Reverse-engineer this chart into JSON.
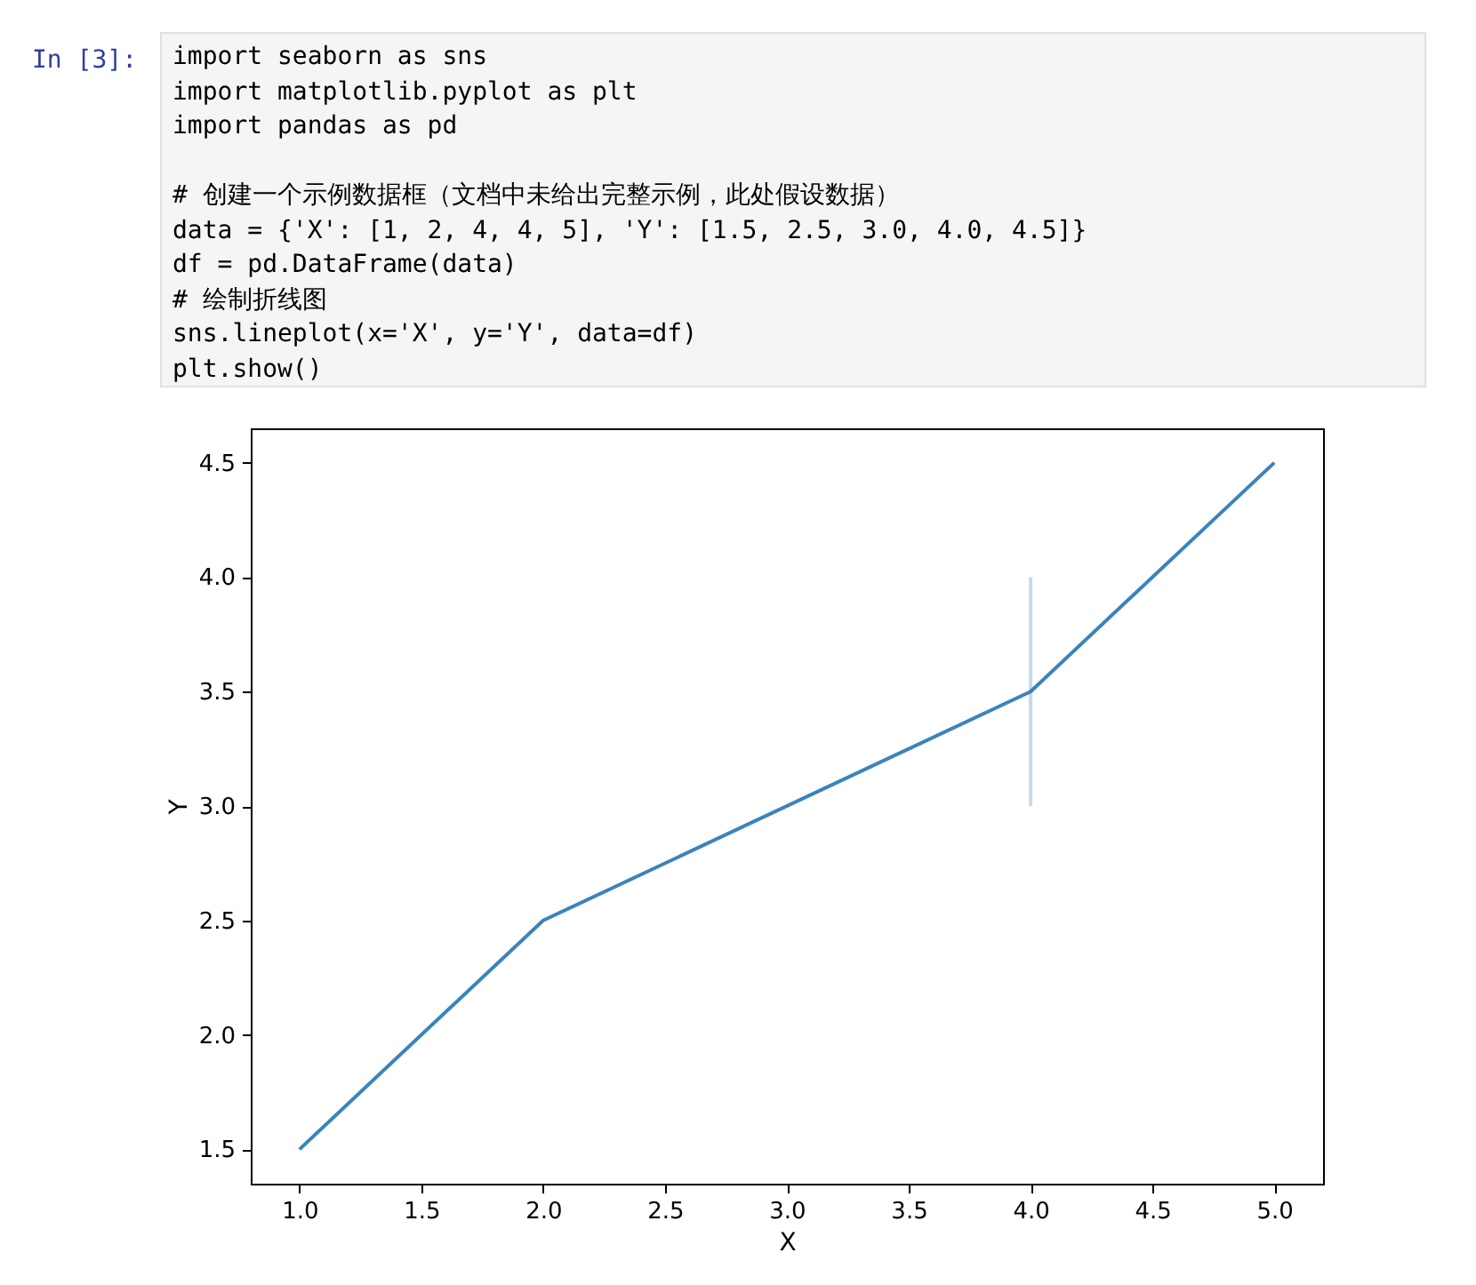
{
  "chart_data": {
    "type": "line",
    "xlabel": "X",
    "ylabel": "Y",
    "annotations": [
      "In [3]:",
      "import seaborn as sns",
      "import matplotlib.pyplot as plt",
      "import pandas as pd",
      "# 创建一个示例数据框（文档中未给出完整示例，此处假设数据）",
      "data = {'X': [1, 2, 4, 4, 5], 'Y': [1.5, 2.5, 3.0, 4.0, 4.5]}",
      "df = pd.DataFrame(data)",
      "# 绘制折线图",
      "sns.lineplot(x='X', y='Y', data=df)",
      "plt.show()"
    ],
    "x": [
      1,
      2,
      4,
      5
    ],
    "series": [
      {
        "color": "#3a84bd",
        "values": [
          1.5,
          2.5,
          3.5,
          4.5
        ],
        "errors": [
          null,
          null,
          [
            3.0,
            4.0
          ],
          null
        ]
      }
    ],
    "xlim": [
      0.8,
      5.2
    ],
    "ylim": [
      1.35,
      4.65
    ],
    "xticks": [
      {
        "value": 1,
        "label": "1.0"
      },
      {
        "value": 1.5,
        "label": "1.5"
      },
      {
        "value": 2,
        "label": "2.0"
      },
      {
        "value": 2.5,
        "label": "2.5"
      },
      {
        "value": 3,
        "label": "3.0"
      },
      {
        "value": 3.5,
        "label": "3.5"
      },
      {
        "value": 4,
        "label": "4.0"
      },
      {
        "value": 4.5,
        "label": "4.5"
      },
      {
        "value": 5,
        "label": "5.0"
      }
    ],
    "yticks": [
      {
        "value": 1.5,
        "label": "1.5"
      },
      {
        "value": 2,
        "label": "2.0"
      },
      {
        "value": 2.5,
        "label": "2.5"
      },
      {
        "value": 3,
        "label": "3.0"
      },
      {
        "value": 3.5,
        "label": "3.5"
      },
      {
        "value": 4,
        "label": "4.0"
      },
      {
        "value": 4.5,
        "label": "4.5"
      }
    ],
    "grid": false,
    "marker": "none",
    "line_style": "solid"
  }
}
